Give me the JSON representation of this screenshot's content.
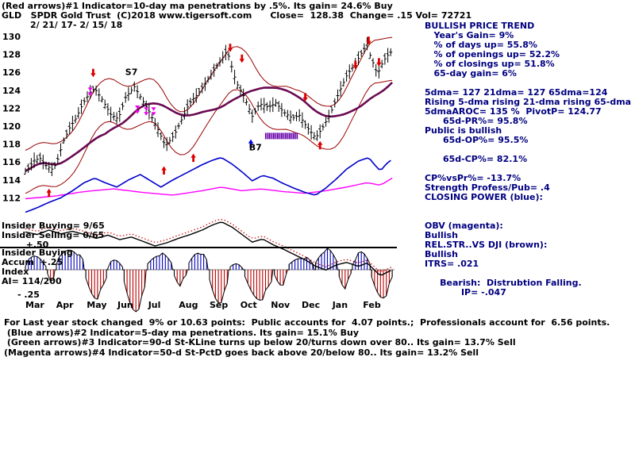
{
  "header": {
    "line1": "(Red arrows)#1 Indicator=10-day ma penetrations by .5%. Its gain= 24.6% Buy",
    "line2": "GLD   SPDR Gold Trust  (C)2018 www.tigersoft.com      Close=  128.38  Change= .15 Vol= 72721",
    "line3": "2/ 21/ 17- 2/ 15/ 18"
  },
  "right_panel": {
    "lines": [
      "BULLISH PRICE TREND",
      "   Year's Gain= 9%",
      "   % of days up= 55.8%",
      "   % of openings up= 52.2%",
      "   % of closings up= 51.8%",
      "   65-day gain= 6%",
      "",
      "5dma= 127 21dma= 127 65dma=124",
      "Rising 5-dma rising 21-dma rising 65-dma",
      "5dmaAROC= 135 %  PivotP= 124.77",
      "      65d-PR%= 95.8%",
      "Public is bullish",
      "      65d-OP%= 95.5%",
      "",
      "      65d-CP%= 82.1%",
      "",
      "CP%vsPr%= -13.7%",
      "Strength Profess/Pub= .4",
      "CLOSING POWER (blue):",
      "",
      "",
      "OBV (magenta):",
      "Bullish",
      "REL.STR..VS DJI (brown):",
      "Bullish",
      "ITRS= .021",
      "",
      "     Bearish:  Distrubtion Falling.",
      "            IP= -.047"
    ]
  },
  "left_labels": {
    "insider_top": [
      "Insider Buying= 9/65",
      "Insider Selling= 0/65",
      "        +.50"
    ],
    "insider_bottom": [
      "Insider Buying",
      "Accum  +.25",
      "Index",
      "AI= 114/200"
    ],
    "minus_label": "- .25"
  },
  "footer": {
    "lines": [
      "For Last year stock changed  9% or 10.63 points:  Public accounts for  4.07 points.;  Professionals account for  6.56 points.",
      " (Blue arrows)#2 Indicator=5-day ma penetrations. Its gain= 15.1% Buy",
      " (Green arrows)#3 Indicator=90-d St-KLine turns up below 20/turns down over 80.. Its gain= 13.7% Sell",
      "(Magenta arrows)#4 Indicator=50-d St-PctD goes back above 20/below 80.. Its gain= 13.2% Sell"
    ]
  },
  "colors": {
    "navy": "#000080",
    "candle": "#000000",
    "band": "#990000",
    "ma_thick": "#6a0a52",
    "obv": "#ff00ff",
    "closing_power": "#0000cc",
    "rel_strength": "#000000",
    "rs_dotted": "#cc0000",
    "osc_pos": "#0000bb",
    "osc_neg": "#bb0000",
    "accum": "#6600aa",
    "arrow_red": "#dd0000",
    "arrow_magenta": "#ee00ee",
    "arrow_blue": "#0000ee"
  },
  "chart_data": {
    "type": "candlestick",
    "title": "GLD SPDR Gold Trust 2/21/17 - 2/15/18 daily chart with price bands, Closing Power, OBV, Rel.Str. vs DJI and Insider Buying Accum Index",
    "days_total": 250,
    "price_axis": {
      "ticks": [
        130,
        128,
        126,
        124,
        122,
        120,
        118,
        116,
        114,
        112
      ]
    },
    "months": [
      "Mar",
      "Apr",
      "May",
      "Jun",
      "Jul",
      "Aug",
      "Sep",
      "Oct",
      "Nov",
      "Dec",
      "Jan",
      "Feb"
    ],
    "close": [
      [
        0,
        115.0
      ],
      [
        2,
        115.3
      ],
      [
        6,
        116.2
      ],
      [
        10,
        116.4
      ],
      [
        14,
        115.6
      ],
      [
        18,
        115.2
      ],
      [
        21,
        115.8
      ],
      [
        26,
        118.4
      ],
      [
        30,
        119.8
      ],
      [
        34,
        120.8
      ],
      [
        39,
        122.5
      ],
      [
        44,
        123.8
      ],
      [
        47,
        124.2
      ],
      [
        52,
        123.0
      ],
      [
        58,
        121.3
      ],
      [
        63,
        120.8
      ],
      [
        68,
        123.2
      ],
      [
        74,
        124.4
      ],
      [
        79,
        123.0
      ],
      [
        84,
        121.6
      ],
      [
        90,
        119.6
      ],
      [
        95,
        117.8
      ],
      [
        101,
        119.0
      ],
      [
        106,
        120.7
      ],
      [
        111,
        122.5
      ],
      [
        117,
        123.6
      ],
      [
        122,
        124.7
      ],
      [
        127,
        126.0
      ],
      [
        133,
        127.4
      ],
      [
        136,
        128.2
      ],
      [
        138,
        127.8
      ],
      [
        143,
        124.9
      ],
      [
        149,
        123.1
      ],
      [
        154,
        121.1
      ],
      [
        159,
        122.5
      ],
      [
        165,
        122.1
      ],
      [
        170,
        122.6
      ],
      [
        175,
        121.6
      ],
      [
        181,
        120.9
      ],
      [
        186,
        121.2
      ],
      [
        191,
        119.9
      ],
      [
        197,
        118.7
      ],
      [
        202,
        119.9
      ],
      [
        207,
        121.4
      ],
      [
        213,
        123.8
      ],
      [
        218,
        125.6
      ],
      [
        224,
        127.0
      ],
      [
        229,
        128.4
      ],
      [
        232,
        129.2
      ],
      [
        234,
        127.9
      ],
      [
        239,
        125.8
      ],
      [
        243,
        127.3
      ],
      [
        247,
        128.1
      ],
      [
        249,
        128.4
      ]
    ],
    "closing_power": [
      [
        0,
        110.4
      ],
      [
        8,
        110.9
      ],
      [
        16,
        111.5
      ],
      [
        24,
        112.0
      ],
      [
        32,
        112.8
      ],
      [
        40,
        113.7
      ],
      [
        47,
        114.2
      ],
      [
        54,
        113.7
      ],
      [
        62,
        113.2
      ],
      [
        70,
        114.0
      ],
      [
        78,
        114.6
      ],
      [
        85,
        113.9
      ],
      [
        92,
        113.2
      ],
      [
        99,
        113.9
      ],
      [
        106,
        114.5
      ],
      [
        113,
        115.1
      ],
      [
        120,
        115.7
      ],
      [
        127,
        116.2
      ],
      [
        133,
        116.5
      ],
      [
        140,
        115.8
      ],
      [
        147,
        114.9
      ],
      [
        154,
        113.9
      ],
      [
        161,
        114.5
      ],
      [
        168,
        114.2
      ],
      [
        175,
        113.6
      ],
      [
        182,
        113.1
      ],
      [
        190,
        112.6
      ],
      [
        197,
        112.3
      ],
      [
        204,
        113.1
      ],
      [
        211,
        114.1
      ],
      [
        218,
        115.2
      ],
      [
        226,
        116.1
      ],
      [
        233,
        116.5
      ],
      [
        237,
        115.7
      ],
      [
        241,
        115.0
      ],
      [
        245,
        115.8
      ],
      [
        249,
        116.3
      ]
    ],
    "obv": [
      [
        0,
        111.9
      ],
      [
        20,
        112.2
      ],
      [
        40,
        112.7
      ],
      [
        60,
        113.0
      ],
      [
        80,
        112.6
      ],
      [
        100,
        112.3
      ],
      [
        120,
        112.8
      ],
      [
        133,
        113.2
      ],
      [
        147,
        112.8
      ],
      [
        160,
        113.0
      ],
      [
        175,
        112.7
      ],
      [
        190,
        112.5
      ],
      [
        204,
        112.8
      ],
      [
        218,
        113.2
      ],
      [
        232,
        113.7
      ],
      [
        241,
        113.4
      ],
      [
        249,
        114.2
      ]
    ],
    "rel_strength": [
      [
        0,
        0.82
      ],
      [
        8,
        0.78
      ],
      [
        16,
        0.85
      ],
      [
        24,
        0.79
      ],
      [
        32,
        0.83
      ],
      [
        40,
        0.78
      ],
      [
        48,
        0.72
      ],
      [
        56,
        0.77
      ],
      [
        64,
        0.7
      ],
      [
        72,
        0.74
      ],
      [
        80,
        0.67
      ],
      [
        88,
        0.6
      ],
      [
        96,
        0.65
      ],
      [
        104,
        0.72
      ],
      [
        112,
        0.78
      ],
      [
        120,
        0.85
      ],
      [
        127,
        0.93
      ],
      [
        133,
        0.98
      ],
      [
        140,
        0.9
      ],
      [
        147,
        0.78
      ],
      [
        154,
        0.66
      ],
      [
        161,
        0.71
      ],
      [
        168,
        0.62
      ],
      [
        175,
        0.55
      ],
      [
        182,
        0.47
      ],
      [
        190,
        0.38
      ],
      [
        197,
        0.28
      ],
      [
        204,
        0.22
      ],
      [
        211,
        0.3
      ],
      [
        218,
        0.34
      ],
      [
        226,
        0.28
      ],
      [
        232,
        0.33
      ],
      [
        237,
        0.22
      ],
      [
        241,
        0.13
      ],
      [
        245,
        0.18
      ],
      [
        249,
        0.22
      ]
    ],
    "oscillator_clusters": [
      [
        0,
        14,
        0.3
      ],
      [
        15,
        20,
        -0.12
      ],
      [
        21,
        40,
        0.45
      ],
      [
        41,
        55,
        -0.3
      ],
      [
        56,
        66,
        0.2
      ],
      [
        67,
        82,
        -0.45
      ],
      [
        83,
        100,
        0.35
      ],
      [
        101,
        110,
        -0.15
      ],
      [
        111,
        124,
        0.4
      ],
      [
        125,
        138,
        -0.35
      ],
      [
        139,
        148,
        0.15
      ],
      [
        149,
        168,
        -0.32
      ],
      [
        169,
        178,
        -0.15
      ],
      [
        179,
        196,
        0.28
      ],
      [
        197,
        212,
        0.45
      ],
      [
        213,
        221,
        -0.18
      ],
      [
        222,
        234,
        0.38
      ],
      [
        235,
        249,
        -0.3
      ]
    ],
    "accum_band": {
      "d0": 163,
      "d1": 185,
      "price": 118.9
    },
    "arrows": {
      "red_up": [
        [
          16,
          113.3
        ],
        [
          94,
          115.8
        ],
        [
          114,
          117.2
        ],
        [
          200,
          118.6
        ]
      ],
      "red_down": [
        [
          46,
          125.2
        ],
        [
          139,
          128.0
        ],
        [
          147,
          126.8
        ],
        [
          190,
          122.5
        ],
        [
          224,
          126.1
        ],
        [
          233,
          128.8
        ],
        [
          240,
          126.4
        ]
      ],
      "magenta_down": [
        [
          44,
          123.9
        ],
        [
          76,
          121.9
        ],
        [
          82,
          121.7
        ],
        [
          87,
          121.7
        ]
      ],
      "blue_up": [
        [
          153,
          118.8
        ]
      ]
    },
    "annotations": [
      {
        "label": "S7",
        "day": 71,
        "price": 125.7
      },
      {
        "label": "B7",
        "day": 155,
        "price": 117.3
      }
    ]
  }
}
